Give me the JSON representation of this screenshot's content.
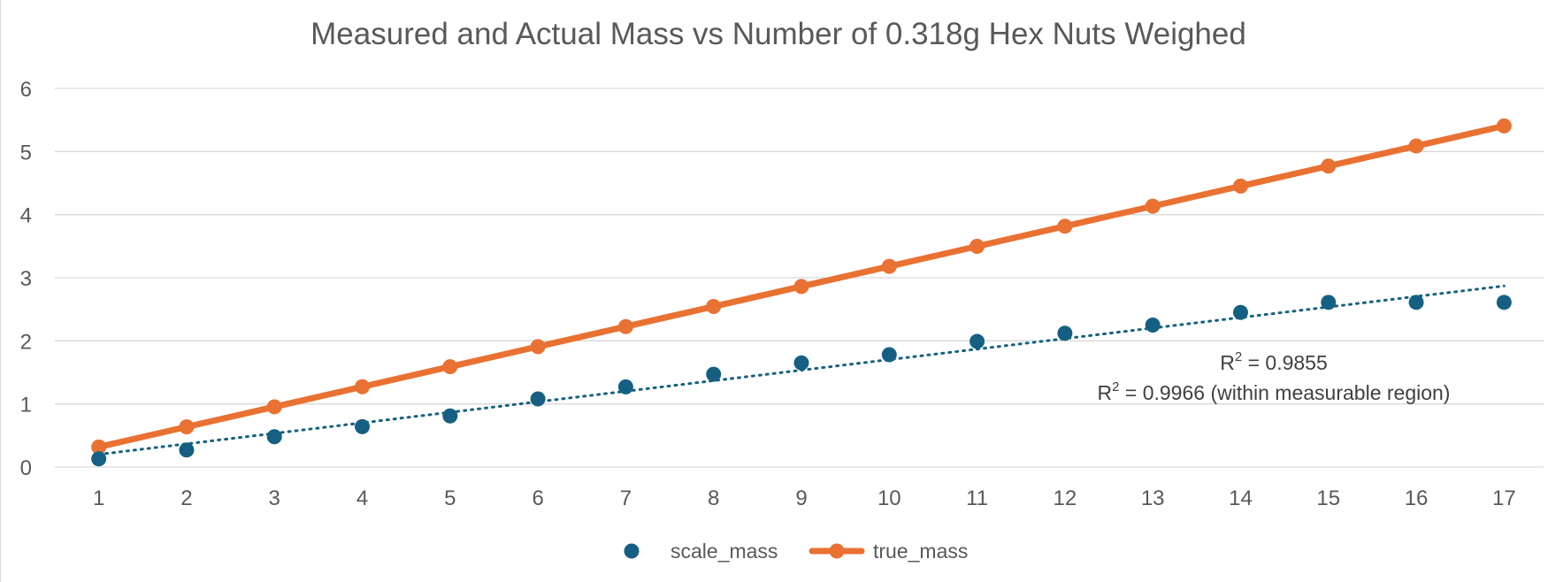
{
  "chart_data": {
    "type": "scatter",
    "title": "Measured and Actual Mass vs Number of 0.318g Hex Nuts Weighed",
    "xlabel": "",
    "ylabel": "",
    "x": [
      1,
      2,
      3,
      4,
      5,
      6,
      7,
      8,
      9,
      10,
      11,
      12,
      13,
      14,
      15,
      16,
      17
    ],
    "xlim": [
      0.5,
      17.5
    ],
    "ylim": [
      0,
      6
    ],
    "y_ticks": [
      0,
      1,
      2,
      3,
      4,
      5,
      6
    ],
    "grid": true,
    "legend_position": "bottom",
    "series": [
      {
        "name": "scale_mass",
        "style": "markers",
        "color": "#156082",
        "values": [
          0.13,
          0.27,
          0.48,
          0.64,
          0.81,
          1.08,
          1.27,
          1.47,
          1.65,
          1.78,
          1.99,
          2.12,
          2.25,
          2.45,
          2.61,
          2.61,
          2.61
        ],
        "trendline": {
          "type": "linear",
          "style": "dotted",
          "start": [
            1,
            0.2
          ],
          "end": [
            17,
            2.87
          ]
        }
      },
      {
        "name": "true_mass",
        "style": "line-markers",
        "color": "#e97132",
        "values": [
          0.318,
          0.636,
          0.954,
          1.272,
          1.59,
          1.908,
          2.226,
          2.544,
          2.862,
          3.18,
          3.498,
          3.816,
          4.134,
          4.452,
          4.77,
          5.088,
          5.406
        ]
      }
    ],
    "annotations": [
      {
        "label": "R",
        "sup": "2",
        "text": " = 0.9855"
      },
      {
        "label": "R",
        "sup": "2",
        "text": " = 0.9966 (within measurable region)"
      }
    ],
    "colors": {
      "gridline": "#d9d9d9",
      "axis_text": "#595959",
      "title_text": "#595959",
      "annotation_text": "#404040"
    }
  }
}
